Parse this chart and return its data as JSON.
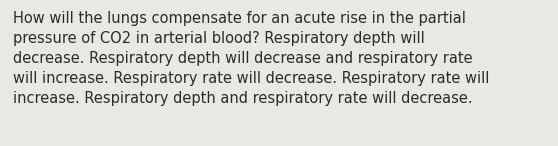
{
  "text": "How will the lungs compensate for an acute rise in the partial\npressure of CO2 in arterial blood? Respiratory depth will\ndecrease. Respiratory depth will decrease and respiratory rate\nwill increase. Respiratory rate will decrease. Respiratory rate will\nincrease. Respiratory depth and respiratory rate will decrease.",
  "bg_color": "#eae8e3",
  "text_color": "#2b2b2b",
  "font_size": 10.5,
  "fig_width": 5.58,
  "fig_height": 1.46,
  "dpi": 100
}
